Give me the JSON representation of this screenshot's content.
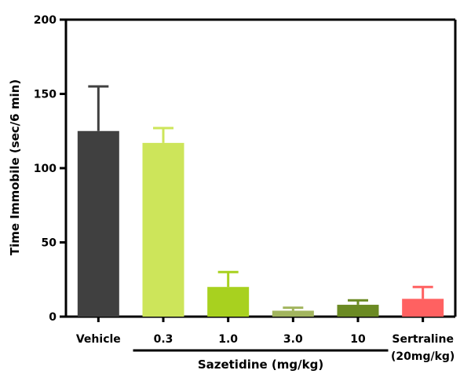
{
  "chart_data": {
    "type": "bar",
    "ylabel": "Time Immobile (sec/6 min)",
    "ylim": [
      0,
      200
    ],
    "yticks": [
      0,
      50,
      100,
      150,
      200
    ],
    "grid": false,
    "categories": [
      {
        "label": "Vehicle",
        "label2": "",
        "value": 125,
        "error": 30,
        "color": "#404040"
      },
      {
        "label": "0.3",
        "label2": "",
        "value": 117,
        "error": 10,
        "color": "#cde55a"
      },
      {
        "label": "1.0",
        "label2": "",
        "value": 20,
        "error": 10,
        "color": "#a8d11f"
      },
      {
        "label": "3.0",
        "label2": "",
        "value": 4,
        "error": 2,
        "color": "#a2b55e"
      },
      {
        "label": "10",
        "label2": "",
        "value": 8,
        "error": 3,
        "color": "#6b8a23"
      },
      {
        "label": "Sertraline",
        "label2": "(20mg/kg)",
        "value": 12,
        "error": 8,
        "color": "#ff6161"
      }
    ],
    "group_label": {
      "text": "Sazetidine (mg/kg)",
      "from_index": 1,
      "to_index": 4
    }
  }
}
